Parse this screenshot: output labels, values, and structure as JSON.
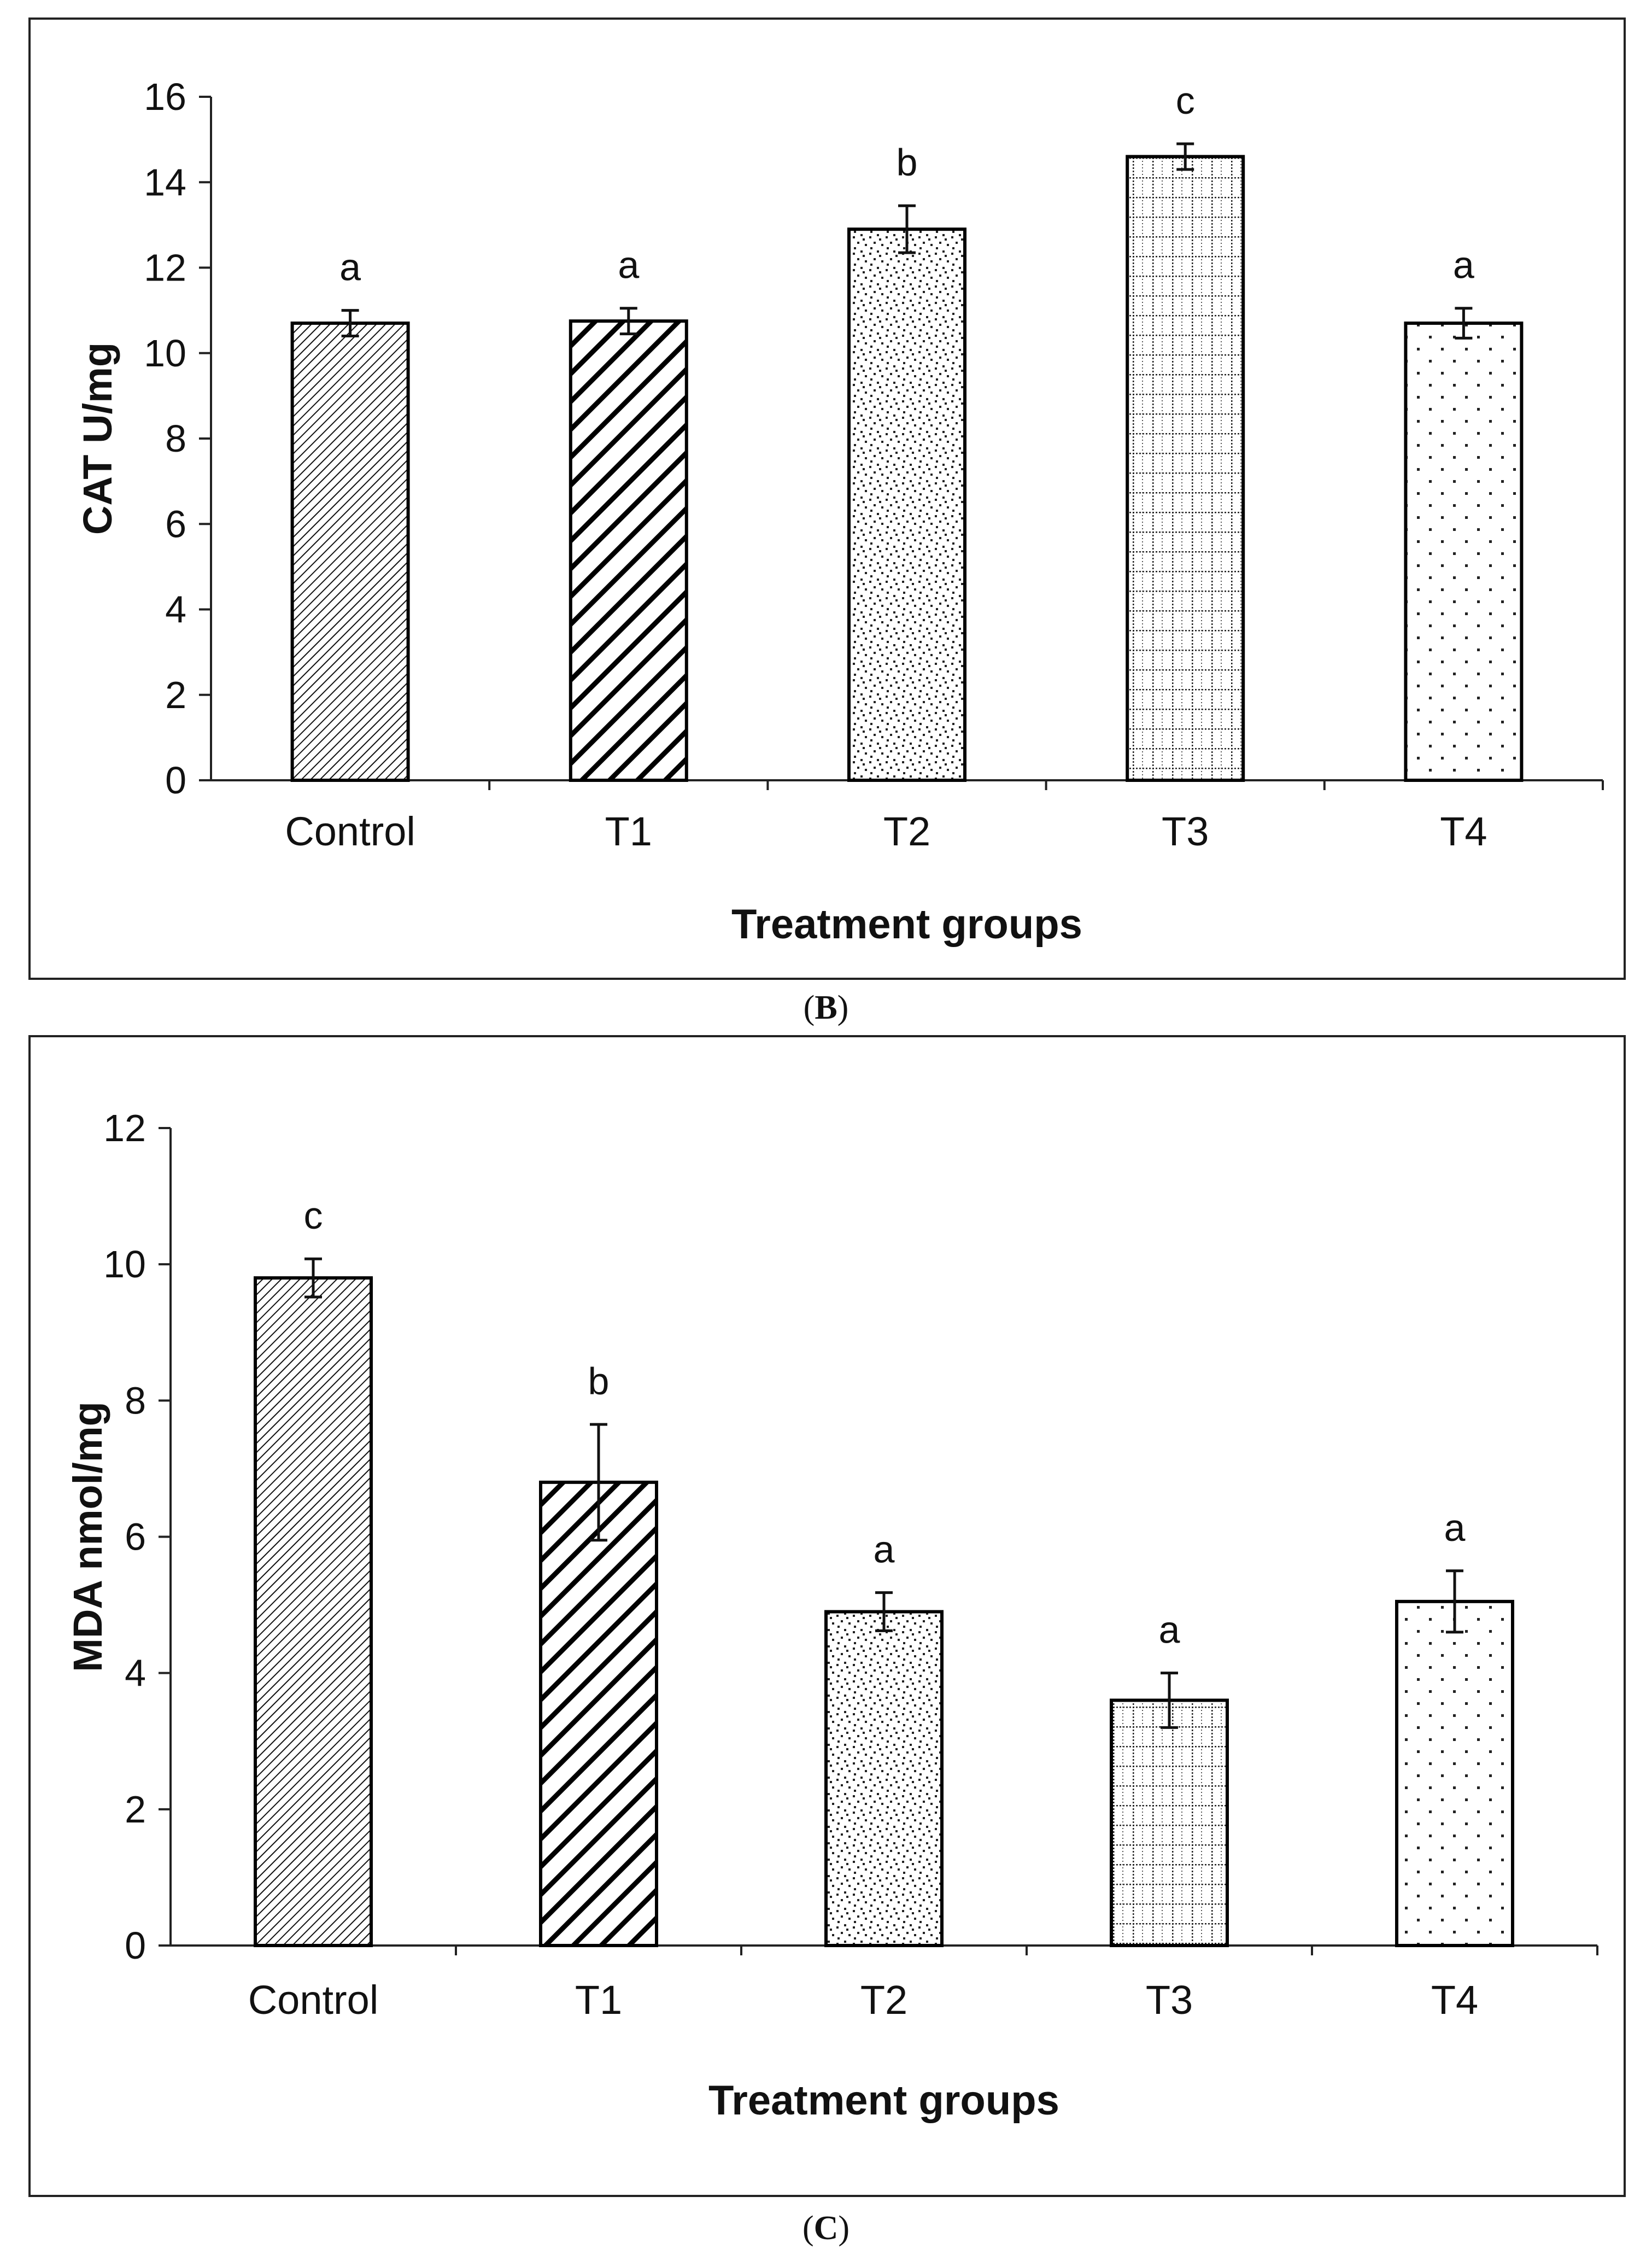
{
  "captions": {
    "panel_b": "B",
    "panel_c": "C"
  },
  "colors": {
    "axis": "#222222",
    "bar_edge": "#000000",
    "background": "#ffffff"
  },
  "chart_data": [
    {
      "id": "B",
      "type": "bar",
      "categories": [
        "Control",
        "T1",
        "T2",
        "T3",
        "T4"
      ],
      "values": [
        10.7,
        10.75,
        12.9,
        14.6,
        10.7
      ],
      "errors": [
        0.3,
        0.3,
        0.55,
        0.3,
        0.35
      ],
      "significance": [
        "a",
        "a",
        "b",
        "c",
        "a"
      ],
      "patterns": [
        "fine-diagonal",
        "bold-diagonal",
        "scatter-dots",
        "grid",
        "sparse-dots"
      ],
      "xlabel": "Treatment groups",
      "ylabel": "CAT U/mg",
      "ylim": [
        0,
        16
      ],
      "yticks": [
        0,
        2,
        4,
        6,
        8,
        10,
        12,
        14,
        16
      ]
    },
    {
      "id": "C",
      "type": "bar",
      "categories": [
        "Control",
        "T1",
        "T2",
        "T3",
        "T4"
      ],
      "values": [
        9.8,
        6.8,
        4.9,
        3.6,
        5.05
      ],
      "errors": [
        0.28,
        0.85,
        0.28,
        0.4,
        0.45
      ],
      "significance": [
        "c",
        "b",
        "a",
        "a",
        "a"
      ],
      "patterns": [
        "fine-diagonal",
        "bold-diagonal",
        "scatter-dots",
        "grid",
        "sparse-dots"
      ],
      "xlabel": "Treatment groups",
      "ylabel": "MDA nmol/mg",
      "ylim": [
        0,
        12
      ],
      "yticks": [
        0,
        2,
        4,
        6,
        8,
        10,
        12
      ]
    }
  ]
}
